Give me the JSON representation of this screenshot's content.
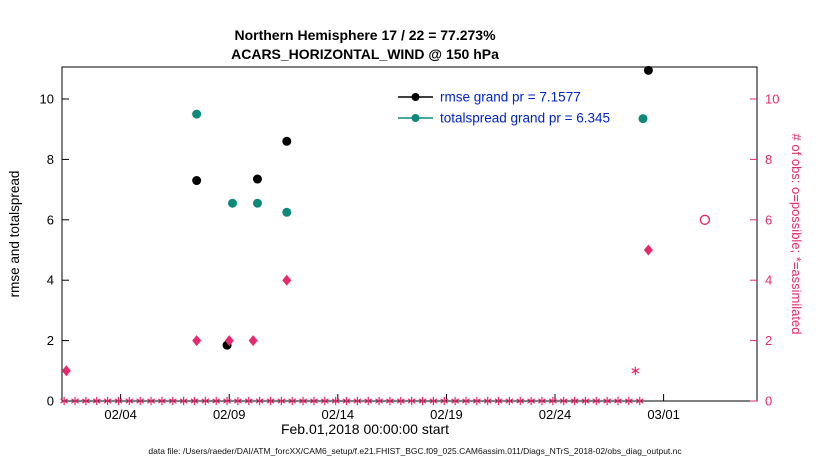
{
  "chart_data": {
    "type": "scatter",
    "title_line1": "Northern Hemisphere 17 / 22 = 77.273%",
    "title_line2": "ACARS_HORIZONTAL_WIND @ 150 hPa",
    "xlabel": "Feb.01,2018 00:00:00 start",
    "ylabel_left": "rmse and totalspread",
    "ylabel_right": "# of obs: o=possible; *=assimilated",
    "footer": "data file: /Users/raeder/DAI/ATM_forcXX/CAM6_setup/f.e21.FHIST_BGC.f09_025.CAM6assim.011/Diags_NTrS_2018-02/obs_diag_output.nc",
    "colors": {
      "rmse": "#000000",
      "totalspread": "#0e8a7b",
      "obs": "#e6296f",
      "legend_text": "#0022cc",
      "axis": "#000000"
    },
    "x_axis": {
      "range_days": [
        0.3,
        32.3
      ],
      "ticks": [
        {
          "day": 3,
          "label": "02/04"
        },
        {
          "day": 8,
          "label": "02/09"
        },
        {
          "day": 13,
          "label": "02/14"
        },
        {
          "day": 18,
          "label": "02/19"
        },
        {
          "day": 23,
          "label": "02/24"
        },
        {
          "day": 28,
          "label": "03/01"
        }
      ]
    },
    "y_axis_left": {
      "range": [
        0,
        11.06
      ],
      "ticks": [
        0,
        2,
        4,
        6,
        8,
        10
      ]
    },
    "y_axis_right": {
      "range": [
        0,
        11.06
      ],
      "ticks": [
        0,
        2,
        4,
        6,
        8,
        10
      ]
    },
    "legend": [
      {
        "color_key": "rmse",
        "label": "rmse grand pr = 7.1577"
      },
      {
        "color_key": "totalspread",
        "label": "totalspread grand pr = 6.345"
      }
    ],
    "series": [
      {
        "name": "rmse",
        "marker": "filled-circle",
        "color_key": "rmse",
        "points": [
          [
            6.5,
            7.3
          ],
          [
            7.9,
            1.85
          ],
          [
            9.3,
            7.35
          ],
          [
            10.65,
            8.6
          ],
          [
            27.3,
            10.95
          ]
        ]
      },
      {
        "name": "totalspread",
        "marker": "filled-circle",
        "color_key": "totalspread",
        "points": [
          [
            6.5,
            9.5
          ],
          [
            8.15,
            6.55
          ],
          [
            9.3,
            6.55
          ],
          [
            10.65,
            6.25
          ],
          [
            27.05,
            9.35
          ]
        ]
      },
      {
        "name": "obs-possible",
        "marker": "open-circle",
        "color_key": "obs",
        "points": [
          [
            29.9,
            6
          ]
        ]
      },
      {
        "name": "obs-assimilated-diamond",
        "marker": "diamond",
        "color_key": "obs",
        "points": [
          [
            0.5,
            1
          ],
          [
            6.5,
            2
          ],
          [
            8.0,
            2
          ],
          [
            9.1,
            2
          ],
          [
            10.65,
            4
          ],
          [
            27.3,
            5
          ]
        ]
      },
      {
        "name": "obs-assimilated-star",
        "marker": "asterisk",
        "color_key": "obs",
        "points": [
          [
            26.7,
            1
          ]
        ]
      }
    ],
    "zero_row": {
      "marker": "asterisk",
      "color_key": "obs",
      "value": 0,
      "start_day": 0.4,
      "end_day": 27.0,
      "step": 0.5
    }
  }
}
